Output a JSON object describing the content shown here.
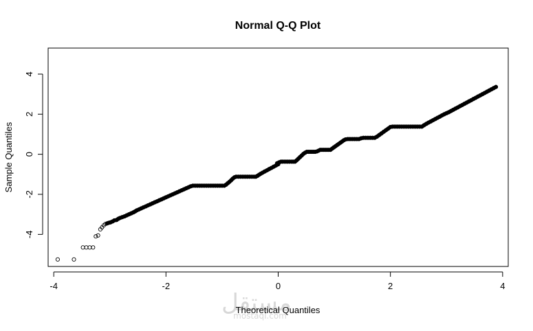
{
  "chart_data": {
    "type": "scatter",
    "title": "Normal Q-Q Plot",
    "xlabel": "Theoretical Quantiles",
    "ylabel": "Sample Quantiles",
    "xlim": [
      -4.1,
      4.1
    ],
    "ylim": [
      -5.6,
      5.3
    ],
    "xticks": [
      -4,
      -2,
      0,
      2,
      4
    ],
    "yticks": [
      -4,
      -2,
      0,
      2,
      4
    ],
    "xtick_labels": [
      "-4",
      "-2",
      "0",
      "2",
      "4"
    ],
    "ytick_labels": [
      "-4",
      "-2",
      "0",
      "2",
      "4"
    ],
    "grid": false,
    "marker": "open-circle",
    "series": [
      {
        "points": [
          [
            -3.93,
            -5.25
          ],
          [
            -3.64,
            -5.25
          ],
          [
            -3.48,
            -4.65
          ],
          [
            -3.42,
            -4.65
          ],
          [
            -3.36,
            -4.65
          ],
          [
            -3.3,
            -4.65
          ],
          [
            -3.25,
            -4.1
          ],
          [
            -3.21,
            -4.05
          ],
          [
            -3.17,
            -3.75
          ],
          [
            -3.14,
            -3.65
          ],
          [
            -3.11,
            -3.55
          ],
          [
            -3.08,
            -3.48
          ],
          [
            -3.05,
            -3.45
          ],
          [
            -3.02,
            -3.42
          ],
          [
            -2.99,
            -3.4
          ],
          [
            -2.95,
            -3.35
          ],
          [
            -2.92,
            -3.3
          ],
          [
            -2.88,
            -3.28
          ],
          [
            -2.85,
            -3.22
          ],
          [
            -2.82,
            -3.18
          ],
          [
            -2.78,
            -3.14
          ],
          [
            -2.74,
            -3.1
          ],
          [
            -2.7,
            -3.05
          ],
          [
            -2.66,
            -3.0
          ],
          [
            -2.62,
            -2.95
          ],
          [
            -2.58,
            -2.9
          ],
          [
            -2.55,
            -2.85
          ],
          [
            -2.52,
            -2.8
          ],
          [
            -2.48,
            -2.75
          ],
          [
            -2.44,
            -2.7
          ],
          [
            -2.4,
            -2.65
          ],
          [
            -2.36,
            -2.6
          ],
          [
            -2.32,
            -2.55
          ],
          [
            -2.28,
            -2.5
          ],
          [
            -2.24,
            -2.45
          ],
          [
            -2.2,
            -2.4
          ],
          [
            -2.16,
            -2.35
          ],
          [
            -2.12,
            -2.3
          ],
          [
            -2.08,
            -2.25
          ],
          [
            -2.04,
            -2.2
          ],
          [
            -2.0,
            -2.15
          ],
          [
            -1.96,
            -2.1
          ],
          [
            -1.92,
            -2.05
          ],
          [
            -1.88,
            -2.0
          ],
          [
            -1.84,
            -1.95
          ],
          [
            -1.8,
            -1.9
          ],
          [
            -1.76,
            -1.85
          ],
          [
            -1.72,
            -1.8
          ],
          [
            -1.68,
            -1.75
          ],
          [
            -1.64,
            -1.7
          ],
          [
            -1.6,
            -1.65
          ],
          [
            -1.56,
            -1.6
          ],
          [
            -1.52,
            -1.57
          ],
          [
            -1.48,
            -1.57
          ],
          [
            -1.44,
            -1.57
          ],
          [
            -1.4,
            -1.57
          ],
          [
            -1.36,
            -1.57
          ],
          [
            -1.32,
            -1.57
          ],
          [
            -1.28,
            -1.57
          ],
          [
            -1.24,
            -1.57
          ],
          [
            -1.2,
            -1.57
          ],
          [
            -1.16,
            -1.57
          ],
          [
            -1.12,
            -1.57
          ],
          [
            -1.08,
            -1.57
          ],
          [
            -1.04,
            -1.57
          ],
          [
            -1.0,
            -1.57
          ],
          [
            -0.96,
            -1.57
          ],
          [
            -0.93,
            -1.52
          ],
          [
            -0.9,
            -1.45
          ],
          [
            -0.87,
            -1.38
          ],
          [
            -0.84,
            -1.3
          ],
          [
            -0.81,
            -1.22
          ],
          [
            -0.78,
            -1.15
          ],
          [
            -0.75,
            -1.12
          ],
          [
            -0.71,
            -1.12
          ],
          [
            -0.67,
            -1.12
          ],
          [
            -0.63,
            -1.12
          ],
          [
            -0.59,
            -1.12
          ],
          [
            -0.55,
            -1.12
          ],
          [
            -0.51,
            -1.12
          ],
          [
            -0.47,
            -1.12
          ],
          [
            -0.43,
            -1.12
          ],
          [
            -0.4,
            -1.12
          ],
          [
            -0.37,
            -1.08
          ],
          [
            -0.34,
            -1.02
          ],
          [
            -0.31,
            -0.97
          ],
          [
            -0.28,
            -0.92
          ],
          [
            -0.24,
            -0.86
          ],
          [
            -0.2,
            -0.8
          ],
          [
            -0.16,
            -0.74
          ],
          [
            -0.12,
            -0.68
          ],
          [
            -0.08,
            -0.62
          ],
          [
            -0.04,
            -0.56
          ],
          [
            0.0,
            -0.5
          ],
          [
            -0.02,
            -0.45
          ],
          [
            0.02,
            -0.4
          ],
          [
            0.05,
            -0.37
          ],
          [
            0.08,
            -0.37
          ],
          [
            0.12,
            -0.37
          ],
          [
            0.16,
            -0.37
          ],
          [
            0.2,
            -0.37
          ],
          [
            0.24,
            -0.37
          ],
          [
            0.27,
            -0.37
          ],
          [
            0.3,
            -0.37
          ],
          [
            0.33,
            -0.3
          ],
          [
            0.36,
            -0.22
          ],
          [
            0.39,
            -0.14
          ],
          [
            0.42,
            -0.06
          ],
          [
            0.45,
            0.02
          ],
          [
            0.48,
            0.08
          ],
          [
            0.51,
            0.12
          ],
          [
            0.54,
            0.12
          ],
          [
            0.57,
            0.12
          ],
          [
            0.6,
            0.12
          ],
          [
            0.63,
            0.12
          ],
          [
            0.66,
            0.12
          ],
          [
            0.69,
            0.14
          ],
          [
            0.72,
            0.18
          ],
          [
            0.75,
            0.22
          ],
          [
            0.78,
            0.22
          ],
          [
            0.81,
            0.22
          ],
          [
            0.84,
            0.22
          ],
          [
            0.87,
            0.22
          ],
          [
            0.9,
            0.22
          ],
          [
            0.93,
            0.22
          ],
          [
            0.96,
            0.28
          ],
          [
            0.99,
            0.34
          ],
          [
            1.02,
            0.4
          ],
          [
            1.05,
            0.46
          ],
          [
            1.08,
            0.52
          ],
          [
            1.11,
            0.58
          ],
          [
            1.14,
            0.64
          ],
          [
            1.17,
            0.7
          ],
          [
            1.2,
            0.74
          ],
          [
            1.24,
            0.76
          ],
          [
            1.28,
            0.76
          ],
          [
            1.32,
            0.76
          ],
          [
            1.36,
            0.76
          ],
          [
            1.4,
            0.76
          ],
          [
            1.44,
            0.76
          ],
          [
            1.48,
            0.8
          ],
          [
            1.52,
            0.82
          ],
          [
            1.56,
            0.82
          ],
          [
            1.6,
            0.82
          ],
          [
            1.64,
            0.82
          ],
          [
            1.68,
            0.82
          ],
          [
            1.72,
            0.82
          ],
          [
            1.76,
            0.88
          ],
          [
            1.8,
            0.96
          ],
          [
            1.84,
            1.04
          ],
          [
            1.88,
            1.12
          ],
          [
            1.92,
            1.2
          ],
          [
            1.96,
            1.28
          ],
          [
            2.0,
            1.36
          ],
          [
            2.04,
            1.38
          ],
          [
            2.08,
            1.38
          ],
          [
            2.12,
            1.38
          ],
          [
            2.16,
            1.38
          ],
          [
            2.2,
            1.38
          ],
          [
            2.24,
            1.38
          ],
          [
            2.28,
            1.38
          ],
          [
            2.32,
            1.38
          ],
          [
            2.36,
            1.38
          ],
          [
            2.4,
            1.38
          ],
          [
            2.44,
            1.38
          ],
          [
            2.48,
            1.38
          ],
          [
            2.52,
            1.38
          ],
          [
            2.56,
            1.38
          ],
          [
            2.6,
            1.45
          ],
          [
            2.64,
            1.52
          ],
          [
            2.68,
            1.58
          ],
          [
            2.72,
            1.64
          ],
          [
            2.76,
            1.7
          ],
          [
            2.8,
            1.76
          ],
          [
            2.84,
            1.82
          ],
          [
            2.88,
            1.88
          ],
          [
            2.92,
            1.94
          ],
          [
            2.96,
            2.0
          ],
          [
            3.0,
            2.05
          ],
          [
            3.04,
            2.1
          ],
          [
            3.08,
            2.16
          ],
          [
            3.12,
            2.22
          ],
          [
            3.16,
            2.28
          ],
          [
            3.2,
            2.34
          ],
          [
            3.24,
            2.4
          ],
          [
            3.28,
            2.46
          ],
          [
            3.32,
            2.52
          ],
          [
            3.36,
            2.58
          ],
          [
            3.4,
            2.64
          ],
          [
            3.44,
            2.7
          ],
          [
            3.48,
            2.76
          ],
          [
            3.52,
            2.82
          ],
          [
            3.56,
            2.88
          ],
          [
            3.6,
            2.94
          ],
          [
            3.64,
            3.0
          ],
          [
            3.68,
            3.06
          ],
          [
            3.72,
            3.12
          ],
          [
            3.76,
            3.18
          ],
          [
            3.8,
            3.24
          ],
          [
            3.84,
            3.3
          ],
          [
            3.88,
            3.36
          ]
        ]
      }
    ]
  },
  "watermark": {
    "text": "مستقل",
    "subtext": "mostaql.com"
  }
}
